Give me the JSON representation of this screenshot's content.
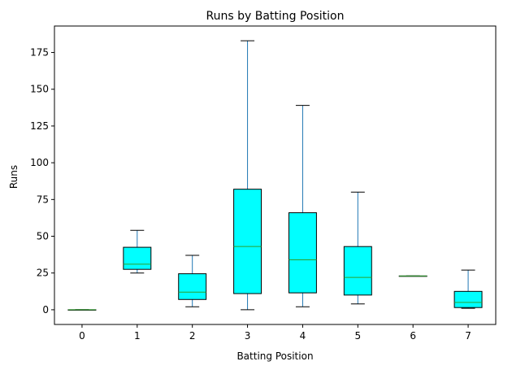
{
  "chart_data": {
    "type": "boxplot",
    "title": "Runs by Batting Position",
    "xlabel": "Batting Position",
    "ylabel": "Runs",
    "ylim": [
      -10,
      193
    ],
    "yticks": [
      0,
      25,
      50,
      75,
      100,
      125,
      150,
      175
    ],
    "grid": false,
    "colors": {
      "box_fill": "#00ffff",
      "box_edge": "#000000",
      "whisker": "#1f77b4",
      "cap": "#000000",
      "median": "#2ca02c"
    },
    "categories": [
      "0",
      "1",
      "2",
      "3",
      "4",
      "5",
      "6",
      "7"
    ],
    "boxes": [
      {
        "min": 0,
        "q1": 0,
        "median": 0,
        "q3": 0,
        "max": 0
      },
      {
        "min": 25,
        "q1": 27.5,
        "median": 31,
        "q3": 42.5,
        "max": 54
      },
      {
        "min": 2,
        "q1": 7,
        "median": 12,
        "q3": 24.5,
        "max": 37
      },
      {
        "min": 0,
        "q1": 11,
        "median": 43,
        "q3": 82,
        "max": 183
      },
      {
        "min": 2,
        "q1": 11.5,
        "median": 34,
        "q3": 66,
        "max": 139
      },
      {
        "min": 4,
        "q1": 10,
        "median": 22,
        "q3": 43,
        "max": 80
      },
      {
        "min": 23,
        "q1": 23,
        "median": 23,
        "q3": 23,
        "max": 23
      },
      {
        "min": 1,
        "q1": 1.5,
        "median": 5,
        "q3": 12.5,
        "max": 27
      }
    ]
  }
}
